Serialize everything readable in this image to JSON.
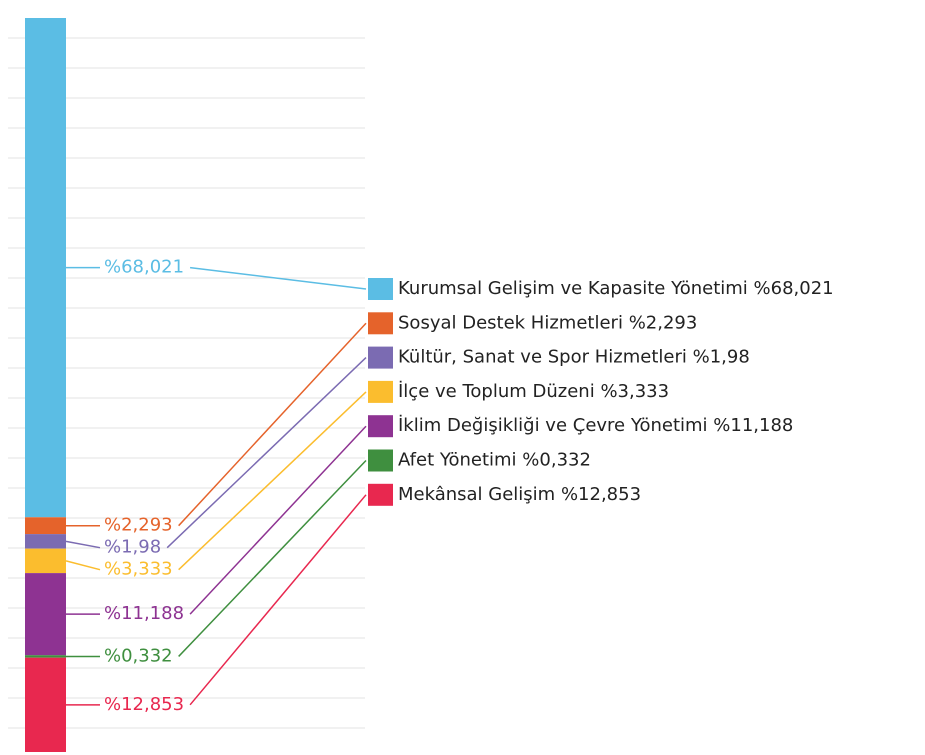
{
  "chart_data": {
    "type": "stacked-bar",
    "ylim": [
      0,
      100
    ],
    "series": [
      {
        "name": "Kurumsal Gelişim ve Kapasite Yönetimi",
        "color": "#5bbde4",
        "values": [
          68.021
        ],
        "value_labels": [
          "%68,021"
        ]
      },
      {
        "name": "Sosyal Destek Hizmetleri",
        "color": "#e5632b",
        "values": [
          2.293
        ],
        "value_labels": [
          "%2,293"
        ]
      },
      {
        "name": "Kültür, Sanat ve Spor Hizmetleri",
        "color": "#7b6bb2",
        "values": [
          1.98
        ],
        "value_labels": [
          "%1,98"
        ]
      },
      {
        "name": "İlçe ve Toplum Düzeni",
        "color": "#fbbd2e",
        "values": [
          3.333
        ],
        "value_labels": [
          "%3,333"
        ]
      },
      {
        "name": "İklim Değişikliği ve Çevre Yönetimi",
        "color": "#8e3392",
        "values": [
          11.188
        ],
        "value_labels": [
          "%11,188"
        ]
      },
      {
        "name": "Afet Yönetimi",
        "color": "#3f8f3f",
        "values": [
          0.332
        ],
        "value_labels": [
          "%0,332"
        ]
      },
      {
        "name": "Mekânsal Gelişim",
        "color": "#e8284f",
        "values": [
          12.853
        ],
        "value_labels": [
          "%12,853"
        ]
      }
    ]
  }
}
